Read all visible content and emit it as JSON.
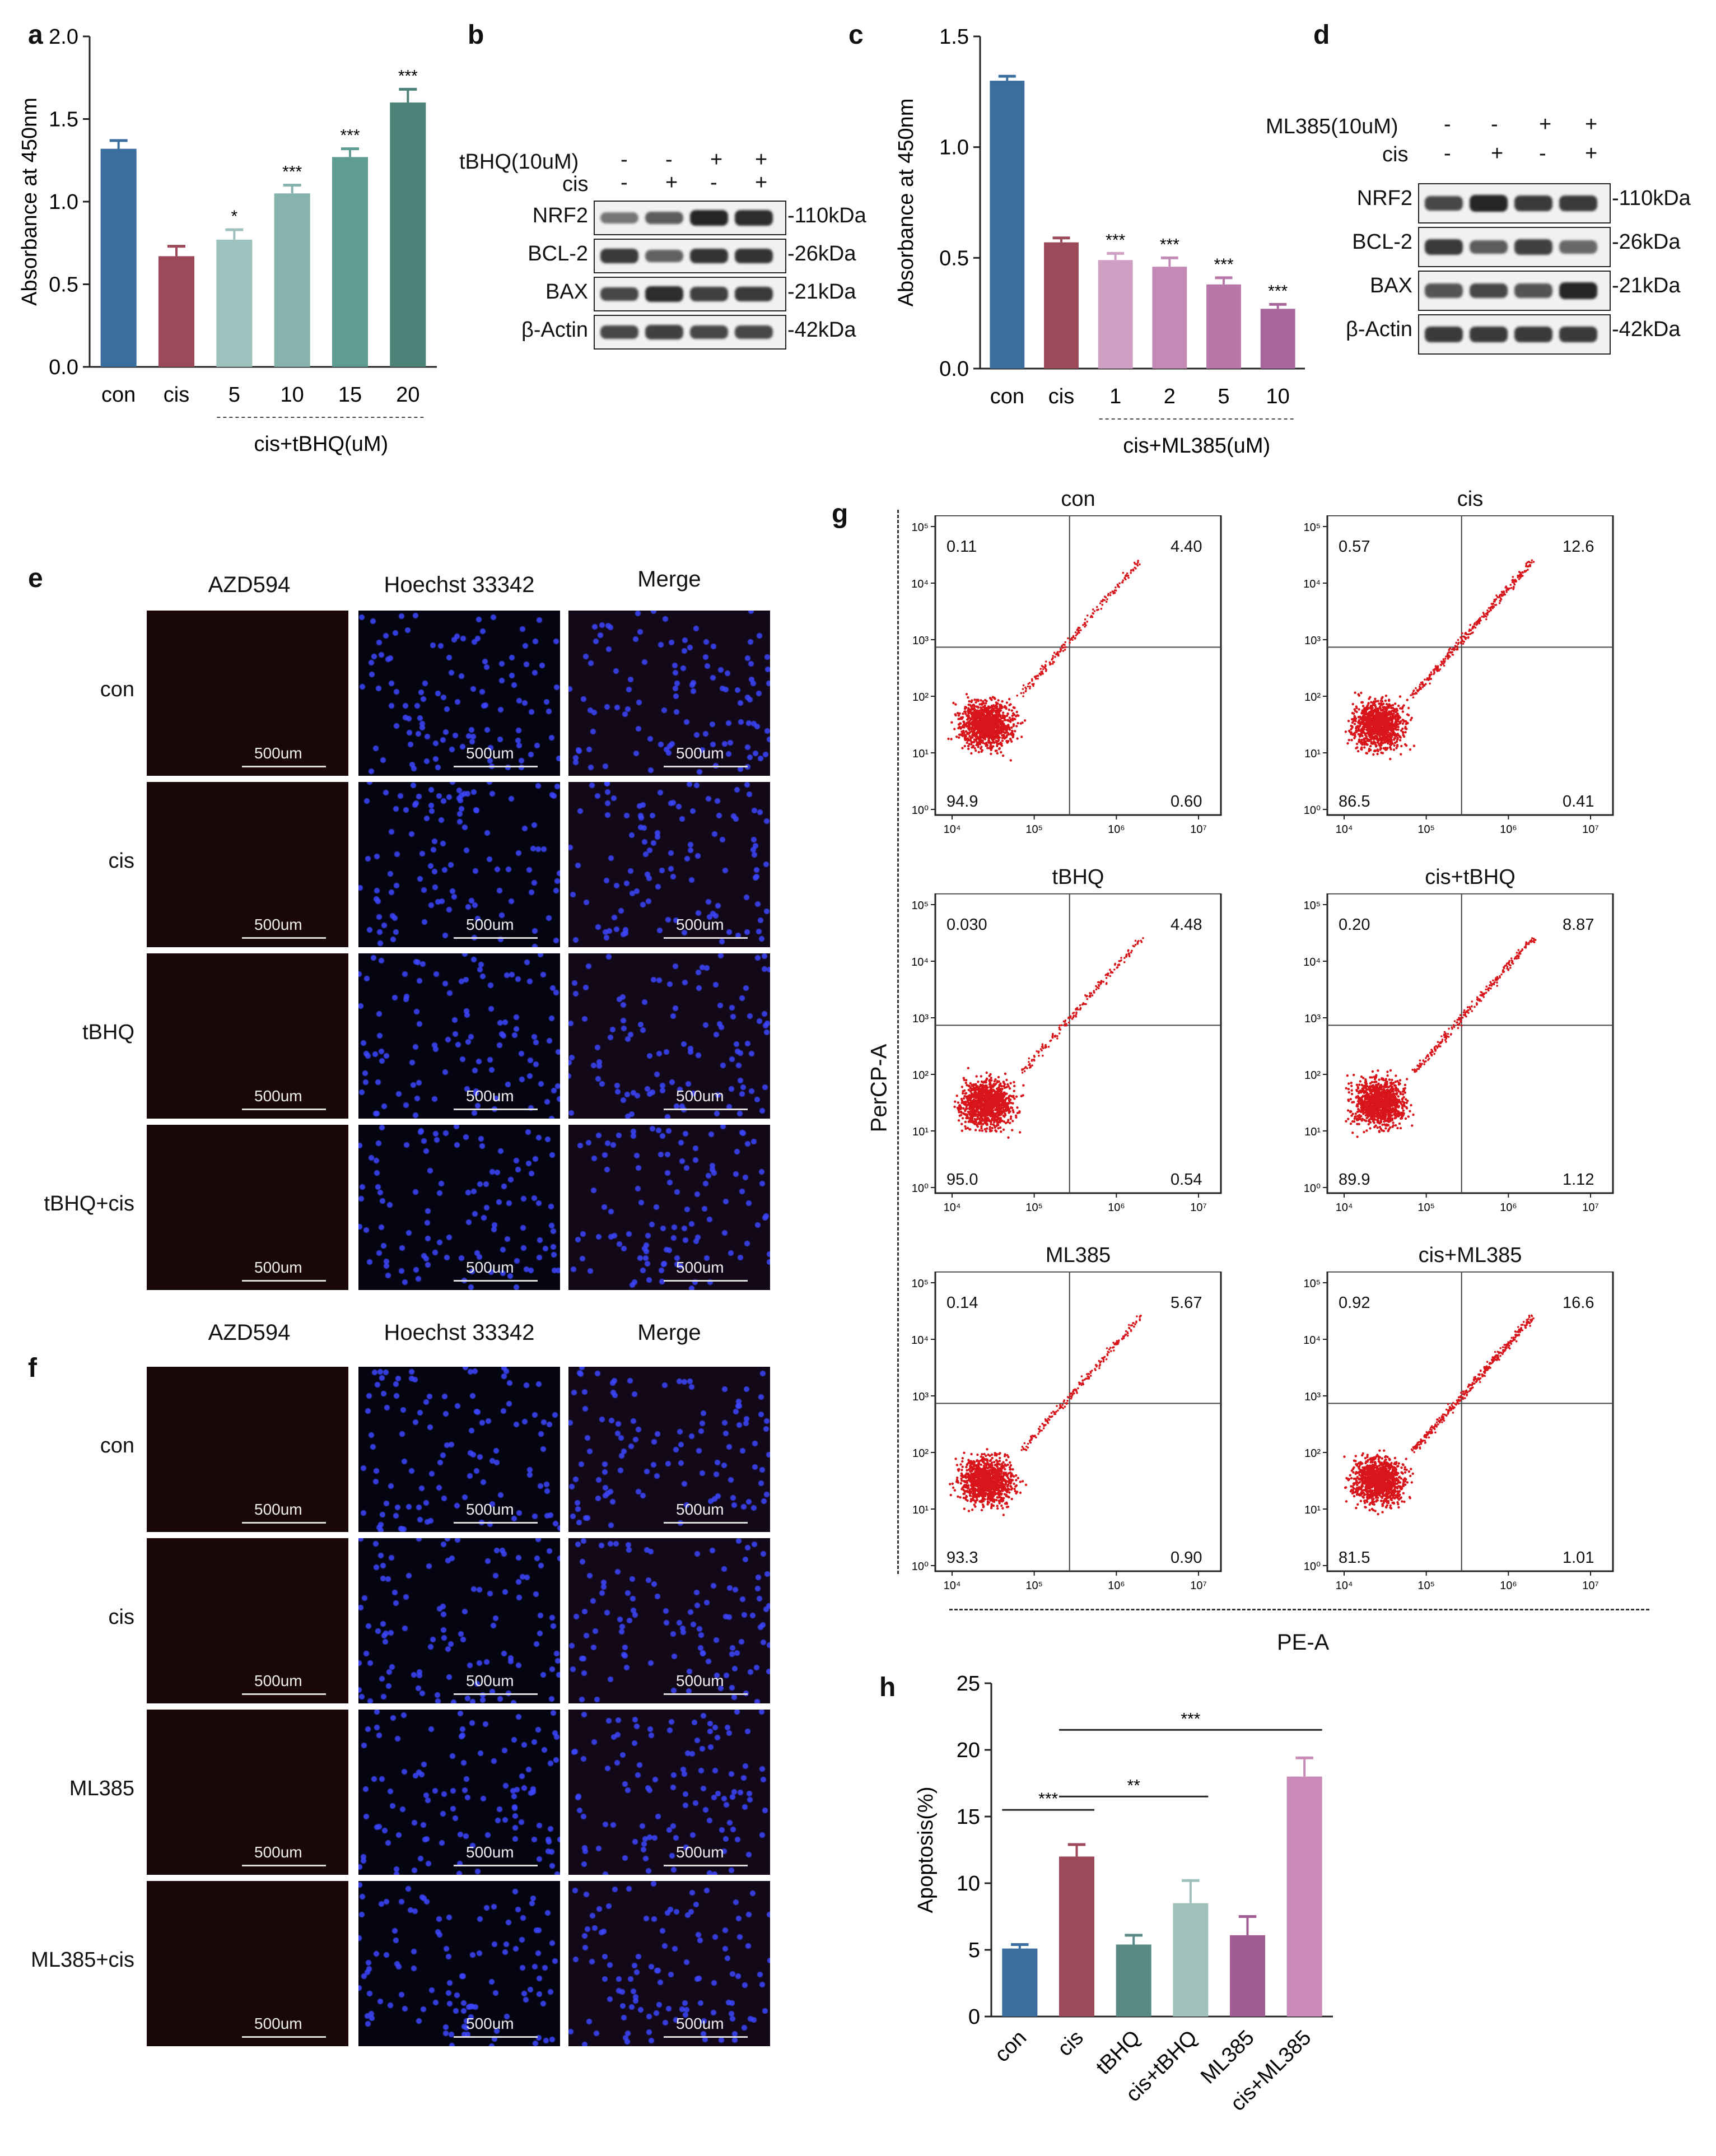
{
  "panels": {
    "a": "a",
    "b": "b",
    "c": "c",
    "d": "d",
    "e": "e",
    "f": "f",
    "g": "g",
    "h": "h"
  },
  "chart_data": [
    {
      "id": "a",
      "type": "bar",
      "title": "",
      "ylabel": "Absorbance at 450nm",
      "xlabel": "cis+tBHQ(uM)",
      "categories": [
        "con",
        "cis",
        "5",
        "10",
        "15",
        "20"
      ],
      "values": [
        1.32,
        0.67,
        0.77,
        1.05,
        1.27,
        1.6
      ],
      "errors": [
        0.05,
        0.06,
        0.06,
        0.05,
        0.05,
        0.08
      ],
      "significance": [
        "",
        "",
        "*",
        "***",
        "***",
        "***"
      ],
      "colors": [
        "#3b6e9c",
        "#9c4a5a",
        "#9dc1bd",
        "#86b3ad",
        "#5f9c93",
        "#4b8177"
      ],
      "ylim": [
        0.0,
        2.0
      ],
      "yticks": [
        "0.0",
        "0.5",
        "1.0",
        "1.5",
        "2.0"
      ],
      "ytick_values": [
        0.0,
        0.5,
        1.0,
        1.5,
        2.0
      ]
    },
    {
      "id": "c",
      "type": "bar",
      "title": "",
      "ylabel": "Absorbance at 450nm",
      "xlabel": "cis+ML385(uM)",
      "categories": [
        "con",
        "cis",
        "1",
        "2",
        "5",
        "10"
      ],
      "values": [
        1.3,
        0.57,
        0.49,
        0.46,
        0.38,
        0.27
      ],
      "errors": [
        0.02,
        0.02,
        0.03,
        0.04,
        0.03,
        0.02
      ],
      "significance": [
        "",
        "",
        "***",
        "***",
        "***",
        "***"
      ],
      "colors": [
        "#3b6e9c",
        "#9c4a5a",
        "#d09fc4",
        "#c38ab7",
        "#b777a8",
        "#a8669c"
      ],
      "ylim": [
        0.0,
        1.5
      ],
      "yticks": [
        "0.0",
        "0.5",
        "1.0",
        "1.5"
      ],
      "ytick_values": [
        0.0,
        0.5,
        1.0,
        1.5
      ]
    },
    {
      "id": "h",
      "type": "bar",
      "title": "",
      "ylabel": "Apoptosis(%)",
      "xlabel": "",
      "categories": [
        "con",
        "cis",
        "tBHQ",
        "cis+tBHQ",
        "ML385",
        "cis+ML385"
      ],
      "values": [
        5.1,
        12.0,
        5.4,
        8.5,
        6.1,
        18.0
      ],
      "errors": [
        0.3,
        0.9,
        0.7,
        1.7,
        1.4,
        1.4
      ],
      "colors": [
        "#3b6e9c",
        "#9c4a5a",
        "#5a8a86",
        "#9fc1bc",
        "#a05c93",
        "#c98ab8"
      ],
      "ylim": [
        0,
        25
      ],
      "yticks": [
        "0",
        "5",
        "10",
        "15",
        "20",
        "25"
      ],
      "ytick_values": [
        0,
        5,
        10,
        15,
        20,
        25
      ],
      "comparisons": [
        {
          "from": 0,
          "to": 1,
          "label": "***"
        },
        {
          "from": 1,
          "to": 3,
          "label": "**"
        },
        {
          "from": 1,
          "to": 5,
          "label": "***"
        }
      ]
    }
  ],
  "blot_b": {
    "treat_label": "tBHQ(10uM)",
    "treat_signs": [
      "-",
      "-",
      "+",
      "+"
    ],
    "cis_label": "cis",
    "cis_signs": [
      "-",
      "+",
      "-",
      "+"
    ],
    "rows": [
      {
        "label": "NRF2",
        "kda": "-110kDa"
      },
      {
        "label": "BCL-2",
        "kda": "-26kDa"
      },
      {
        "label": "BAX",
        "kda": "-21kDa"
      },
      {
        "label": "β-Actin",
        "kda": "-42kDa"
      }
    ]
  },
  "blot_d": {
    "treat_label": "ML385(10uM)",
    "treat_signs": [
      "-",
      "-",
      "+",
      "+"
    ],
    "cis_label": "cis",
    "cis_signs": [
      "-",
      "+",
      "-",
      "+"
    ],
    "rows": [
      {
        "label": "NRF2",
        "kda": "-110kDa"
      },
      {
        "label": "BCL-2",
        "kda": "-26kDa"
      },
      {
        "label": "BAX",
        "kda": "-21kDa"
      },
      {
        "label": "β-Actin",
        "kda": "-42kDa"
      }
    ]
  },
  "micro_e": {
    "columns": [
      "AZD594",
      "Hoechst 33342",
      "Merge"
    ],
    "rows": [
      "con",
      "cis",
      "tBHQ",
      "tBHQ+cis"
    ],
    "scale": "500um"
  },
  "micro_f": {
    "columns": [
      "AZD594",
      "Hoechst 33342",
      "Merge"
    ],
    "rows": [
      "con",
      "cis",
      "ML385",
      "ML385+cis"
    ],
    "scale": "500um"
  },
  "facs": {
    "ylabel": "PerCP-A",
    "xlabel": "PE-A",
    "ytick_labels": [
      "10⁰",
      "10¹",
      "10²",
      "10³",
      "10⁴",
      "10⁵"
    ],
    "xtick_labels": [
      "10⁴",
      "10⁵",
      "10⁶",
      "10⁷"
    ],
    "plots": [
      {
        "title": "con",
        "ul": "0.11",
        "ur": "4.40",
        "ll": "94.9",
        "lr": "0.60"
      },
      {
        "title": "cis",
        "ul": "0.57",
        "ur": "12.6",
        "ll": "86.5",
        "lr": "0.41"
      },
      {
        "title": "tBHQ",
        "ul": "0.030",
        "ur": "4.48",
        "ll": "95.0",
        "lr": "0.54"
      },
      {
        "title": "cis+tBHQ",
        "ul": "0.20",
        "ur": "8.87",
        "ll": "89.9",
        "lr": "1.12"
      },
      {
        "title": "ML385",
        "ul": "0.14",
        "ur": "5.67",
        "ll": "93.3",
        "lr": "0.90"
      },
      {
        "title": "cis+ML385",
        "ul": "0.92",
        "ur": "16.6",
        "ll": "81.5",
        "lr": "1.01"
      }
    ]
  },
  "colors": {
    "dot": "#d8151b",
    "axis": "#222222",
    "nuclei": "#2e3cdc"
  }
}
